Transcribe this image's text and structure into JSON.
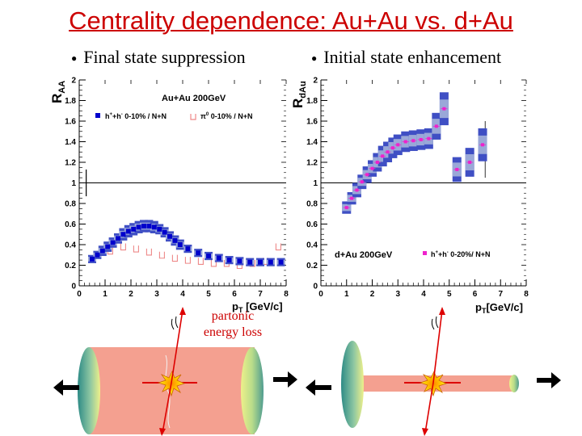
{
  "title": "Centrality dependence: Au+Au vs. d+Au",
  "bullets": {
    "left": "Final state suppression",
    "right": "Initial state enhancement"
  },
  "annotation": {
    "line1": "partonic",
    "line2": "energy loss"
  },
  "colors": {
    "title": "#cc0000",
    "band": "#9aa8d8",
    "band_edge": "#3f4fc4",
    "auau_points": "#0000cc",
    "dau_points": "#ee22cc",
    "pi0_points": "#ee8888",
    "nucleus": "#f4a090",
    "arrow": "#dd0000"
  },
  "chart_data": [
    {
      "type": "scatter",
      "ylabel": "R_AA",
      "ylabel_main": "R",
      "ylabel_sub": "AA",
      "xlabel": "p_T [GeV/c]",
      "xlabel_p": "p",
      "xlabel_sub": "T",
      "xlabel_rest": " [GeV/c]",
      "system_label": "Au+Au 200GeV",
      "xlim": [
        0,
        8
      ],
      "ylim": [
        0,
        2
      ],
      "x_ticks": [
        "0",
        "1",
        "2",
        "3",
        "4",
        "5",
        "6",
        "7",
        "8"
      ],
      "y_ticks": [
        "0",
        "0.2",
        "0.4",
        "0.6",
        "0.8",
        "1",
        "1.2",
        "1.4",
        "1.6",
        "1.8",
        "2"
      ],
      "reference_line": 1,
      "legend_placement": "upper",
      "series": [
        {
          "name": "h⁺+h⁻ 0-10% / N+N",
          "legend_main": "h",
          "legend_sup1": "+",
          "legend_mid": "+h",
          "legend_sup2": "-",
          "legend_rest": " 0-10% / N+N",
          "marker": "filled-square",
          "x": [
            0.5,
            0.7,
            0.9,
            1.1,
            1.3,
            1.5,
            1.7,
            1.9,
            2.1,
            2.3,
            2.5,
            2.7,
            2.9,
            3.1,
            3.3,
            3.5,
            3.7,
            3.9,
            4.2,
            4.6,
            5.0,
            5.4,
            5.8,
            6.2,
            6.6,
            7.0,
            7.4,
            7.8
          ],
          "y": [
            0.26,
            0.3,
            0.34,
            0.38,
            0.42,
            0.46,
            0.5,
            0.53,
            0.55,
            0.57,
            0.58,
            0.58,
            0.57,
            0.55,
            0.52,
            0.48,
            0.44,
            0.4,
            0.36,
            0.32,
            0.29,
            0.27,
            0.25,
            0.24,
            0.23,
            0.23,
            0.23,
            0.23
          ],
          "band_low": [
            0.22,
            0.26,
            0.29,
            0.33,
            0.37,
            0.41,
            0.44,
            0.47,
            0.49,
            0.51,
            0.52,
            0.52,
            0.51,
            0.5,
            0.47,
            0.43,
            0.39,
            0.35,
            0.32,
            0.28,
            0.25,
            0.23,
            0.21,
            0.2,
            0.19,
            0.19,
            0.19,
            0.19
          ],
          "band_high": [
            0.3,
            0.34,
            0.39,
            0.43,
            0.47,
            0.51,
            0.56,
            0.59,
            0.61,
            0.63,
            0.64,
            0.64,
            0.63,
            0.6,
            0.57,
            0.53,
            0.49,
            0.45,
            0.4,
            0.36,
            0.33,
            0.31,
            0.29,
            0.28,
            0.27,
            0.27,
            0.27,
            0.27
          ]
        },
        {
          "name": "π⁰ 0-10% / N+N",
          "legend_main": "π",
          "legend_sup1": "0",
          "legend_rest": " 0-10% / N+N",
          "marker": "open-square-bracket",
          "x": [
            1.2,
            1.7,
            2.2,
            2.7,
            3.2,
            3.7,
            4.2,
            4.7,
            5.2,
            5.7,
            6.2,
            6.7,
            7.2,
            7.7
          ],
          "y": [
            0.34,
            0.38,
            0.36,
            0.33,
            0.3,
            0.27,
            0.25,
            0.24,
            0.22,
            0.22,
            0.2,
            0.22,
            0.24,
            0.38
          ]
        }
      ]
    },
    {
      "type": "scatter",
      "ylabel": "R_dAu",
      "ylabel_main": "R",
      "ylabel_sub": "dAu",
      "xlabel": "p_T[GeV/c]",
      "xlabel_p": "p",
      "xlabel_sub": "T",
      "xlabel_rest": "[GeV/c]",
      "system_label": "d+Au 200GeV",
      "xlim": [
        0,
        8
      ],
      "ylim": [
        0,
        2
      ],
      "x_ticks": [
        "0",
        "1",
        "2",
        "3",
        "4",
        "5",
        "6",
        "7",
        "8"
      ],
      "y_ticks": [
        "0",
        "0.2",
        "0.4",
        "0.6",
        "0.8",
        "1",
        "1.2",
        "1.4",
        "1.6",
        "1.8",
        "2"
      ],
      "reference_line": 1,
      "legend_placement": "lower",
      "series": [
        {
          "name": "h⁺+h⁻ 0-20%/ N+N",
          "legend_main": "h",
          "legend_sup1": "+",
          "legend_mid": "+h",
          "legend_sup2": "-",
          "legend_rest": " 0-20%/ N+N",
          "marker": "filled-square",
          "x": [
            1.0,
            1.2,
            1.4,
            1.6,
            1.8,
            2.0,
            2.2,
            2.4,
            2.6,
            2.8,
            3.0,
            3.3,
            3.6,
            3.9,
            4.2,
            4.5,
            4.8,
            5.3,
            5.8,
            6.3
          ],
          "y": [
            0.76,
            0.85,
            0.93,
            1.01,
            1.08,
            1.14,
            1.2,
            1.26,
            1.3,
            1.34,
            1.37,
            1.4,
            1.41,
            1.42,
            1.43,
            1.55,
            1.72,
            1.13,
            1.2,
            1.37
          ],
          "band_low": [
            0.7,
            0.79,
            0.86,
            0.94,
            1.0,
            1.06,
            1.11,
            1.16,
            1.2,
            1.24,
            1.27,
            1.3,
            1.31,
            1.32,
            1.33,
            1.42,
            1.56,
            1.01,
            1.06,
            1.21
          ],
          "band_high": [
            0.82,
            0.91,
            1.0,
            1.08,
            1.16,
            1.22,
            1.29,
            1.36,
            1.4,
            1.44,
            1.47,
            1.5,
            1.51,
            1.52,
            1.53,
            1.68,
            1.88,
            1.25,
            1.34,
            1.53
          ]
        }
      ]
    }
  ]
}
